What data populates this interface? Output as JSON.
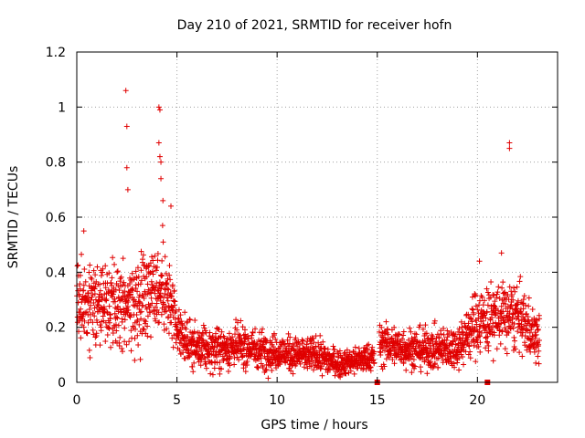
{
  "chart_data": {
    "type": "scatter",
    "title": "Day 210 of 2021, SRMTID for receiver hofn",
    "xlabel": "GPS time / hours",
    "ylabel": "SRMTID / TECUs",
    "xlim": [
      0,
      24
    ],
    "ylim": [
      0,
      1.2
    ],
    "x_ticks": [
      0,
      5,
      10,
      15,
      20
    ],
    "x_tick_labels": [
      "0",
      "5",
      "10",
      "15",
      "20"
    ],
    "y_ticks": [
      0,
      0.2,
      0.4,
      0.6,
      0.8,
      1.0,
      1.2
    ],
    "y_tick_labels": [
      "0",
      "0.2",
      "0.4",
      "0.6",
      "0.8",
      "1",
      "1.2"
    ],
    "grid": true,
    "marker": "+",
    "color": "#e00000",
    "envelope": [
      {
        "x": 0.0,
        "median": 0.3,
        "spread": 0.12
      },
      {
        "x": 1.0,
        "median": 0.28,
        "spread": 0.12
      },
      {
        "x": 2.0,
        "median": 0.26,
        "spread": 0.12
      },
      {
        "x": 3.0,
        "median": 0.3,
        "spread": 0.13
      },
      {
        "x": 4.0,
        "median": 0.36,
        "spread": 0.15
      },
      {
        "x": 4.6,
        "median": 0.3,
        "spread": 0.12
      },
      {
        "x": 5.0,
        "median": 0.18,
        "spread": 0.07
      },
      {
        "x": 6.0,
        "median": 0.12,
        "spread": 0.06
      },
      {
        "x": 7.0,
        "median": 0.12,
        "spread": 0.06
      },
      {
        "x": 8.0,
        "median": 0.13,
        "spread": 0.06
      },
      {
        "x": 9.0,
        "median": 0.12,
        "spread": 0.06
      },
      {
        "x": 10.0,
        "median": 0.11,
        "spread": 0.05
      },
      {
        "x": 11.0,
        "median": 0.1,
        "spread": 0.05
      },
      {
        "x": 12.0,
        "median": 0.1,
        "spread": 0.05
      },
      {
        "x": 13.0,
        "median": 0.07,
        "spread": 0.04
      },
      {
        "x": 14.0,
        "median": 0.08,
        "spread": 0.04
      },
      {
        "x": 14.8,
        "median": 0.09,
        "spread": 0.04
      },
      {
        "x": 15.2,
        "median": 0.14,
        "spread": 0.06
      },
      {
        "x": 16.0,
        "median": 0.13,
        "spread": 0.06
      },
      {
        "x": 17.0,
        "median": 0.12,
        "spread": 0.06
      },
      {
        "x": 18.0,
        "median": 0.12,
        "spread": 0.06
      },
      {
        "x": 19.0,
        "median": 0.13,
        "spread": 0.06
      },
      {
        "x": 20.0,
        "median": 0.22,
        "spread": 0.1
      },
      {
        "x": 21.0,
        "median": 0.24,
        "spread": 0.1
      },
      {
        "x": 22.0,
        "median": 0.24,
        "spread": 0.1
      },
      {
        "x": 23.0,
        "median": 0.16,
        "spread": 0.07
      }
    ],
    "notable_points": [
      {
        "x": 2.45,
        "y": 1.06
      },
      {
        "x": 2.5,
        "y": 0.93
      },
      {
        "x": 2.5,
        "y": 0.78
      },
      {
        "x": 2.55,
        "y": 0.7
      },
      {
        "x": 4.1,
        "y": 1.0
      },
      {
        "x": 4.15,
        "y": 0.99
      },
      {
        "x": 4.1,
        "y": 0.87
      },
      {
        "x": 4.15,
        "y": 0.82
      },
      {
        "x": 4.2,
        "y": 0.8
      },
      {
        "x": 4.2,
        "y": 0.74
      },
      {
        "x": 4.3,
        "y": 0.66
      },
      {
        "x": 4.7,
        "y": 0.64
      },
      {
        "x": 21.6,
        "y": 0.87
      },
      {
        "x": 21.6,
        "y": 0.85
      },
      {
        "x": 21.2,
        "y": 0.47
      },
      {
        "x": 20.1,
        "y": 0.44
      },
      {
        "x": 0.35,
        "y": 0.55
      }
    ],
    "baseline_markers": [
      {
        "x": 15.0,
        "y": 0.0
      },
      {
        "x": 20.5,
        "y": 0.0
      }
    ],
    "data_range": [
      0,
      23.1
    ]
  }
}
